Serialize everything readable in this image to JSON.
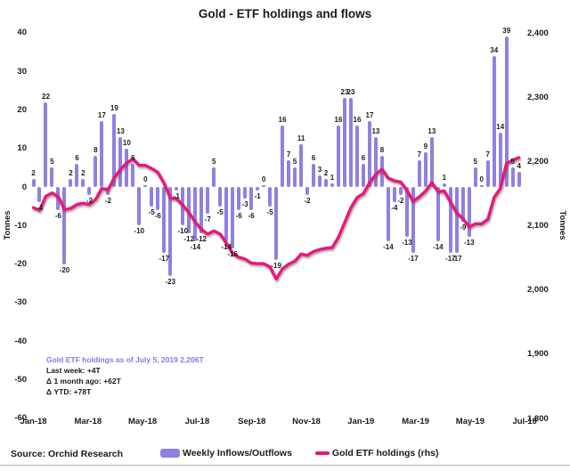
{
  "title": "Gold - ETF holdings and flows",
  "left_axis": {
    "title": "Tonnes",
    "ticks": [
      40,
      30,
      20,
      10,
      0,
      -10,
      -20,
      -30,
      -40,
      -50,
      -60
    ]
  },
  "right_axis": {
    "title": "Tonnes",
    "ticks": [
      "2,400",
      "2,300",
      "2,200",
      "2,100",
      "2,000",
      "1,900",
      "1,800"
    ],
    "tick_values": [
      2400,
      2300,
      2200,
      2100,
      2000,
      1900,
      1800
    ]
  },
  "x_axis": {
    "labels": [
      "Jan-18",
      "Mar-18",
      "May-18",
      "Jul-18",
      "Sep-18",
      "Nov-18",
      "Jan-19",
      "Mar-19",
      "May-19",
      "Jul-19"
    ]
  },
  "annotation": {
    "line1": "Gold ETF holdings as of July 5, 2019 2,206T",
    "line2": "Last week: +4T",
    "line3": "Δ 1 month ago: +62T",
    "line4": "Δ YTD: +78T"
  },
  "source": "Source: Orchid Research",
  "legend": [
    {
      "label": "Weekly Inflows/Outflows",
      "type": "bar"
    },
    {
      "label": "Gold ETF holdings (rhs)",
      "type": "line"
    }
  ],
  "colors": {
    "bar": "#9080e0",
    "line": "#e9177c",
    "annotation_purple": "#8576ec",
    "text": "#1a1a1a"
  },
  "chart_data": {
    "type": "bar+line combo",
    "title": "Gold - ETF holdings and flows",
    "x_axis_labels": [
      "Jan-18",
      "Mar-18",
      "May-18",
      "Jul-18",
      "Sep-18",
      "Nov-18",
      "Jan-19",
      "Mar-19",
      "May-19",
      "Jul-19"
    ],
    "left_ylabel": "Tonnes",
    "right_ylabel": "Tonnes",
    "left_ylim": [
      -60,
      40
    ],
    "right_ylim": [
      1800,
      2400
    ],
    "grid": false,
    "legend_position": "bottom",
    "series": [
      {
        "name": "Weekly Inflows/Outflows",
        "type": "bar",
        "axis": "left",
        "values": [
          2,
          -4,
          22,
          5,
          -6,
          -20,
          2,
          6,
          2,
          -2,
          8,
          17,
          -2,
          19,
          13,
          10,
          6,
          -10,
          0,
          -5,
          -6,
          -17,
          -23,
          -1,
          -10,
          -12,
          -14,
          -12,
          -7,
          5,
          -5,
          -14,
          -16,
          -6,
          -3,
          -6,
          -1,
          0,
          -5,
          -19,
          16,
          7,
          5,
          11,
          -2,
          6,
          3,
          2,
          1,
          16,
          23,
          23,
          16,
          6,
          17,
          13,
          8,
          -14,
          -4,
          -2,
          -13,
          -17,
          7,
          9,
          13,
          -14,
          1,
          -17,
          -17,
          -9,
          -13,
          5,
          0,
          7,
          34,
          14,
          39,
          5,
          4
        ]
      },
      {
        "name": "Gold ETF holdings (rhs)",
        "type": "line",
        "axis": "right",
        "values": [
          2128,
          2124,
          2146,
          2151,
          2145,
          2125,
          2127,
          2133,
          2135,
          2133,
          2141,
          2158,
          2156,
          2175,
          2188,
          2198,
          2204,
          2194,
          2194,
          2189,
          2183,
          2166,
          2143,
          2142,
          2132,
          2120,
          2106,
          2094,
          2087,
          2092,
          2087,
          2073,
          2057,
          2051,
          2048,
          2042,
          2041,
          2041,
          2036,
          2017,
          2033,
          2040,
          2045,
          2056,
          2054,
          2060,
          2063,
          2065,
          2066,
          2082,
          2105,
          2128,
          2144,
          2150,
          2167,
          2180,
          2188,
          2174,
          2170,
          2168,
          2155,
          2138,
          2145,
          2154,
          2167,
          2153,
          2154,
          2137,
          2120,
          2111,
          2098,
          2103,
          2103,
          2110,
          2144,
          2158,
          2197,
          2202,
          2206
        ]
      }
    ]
  }
}
